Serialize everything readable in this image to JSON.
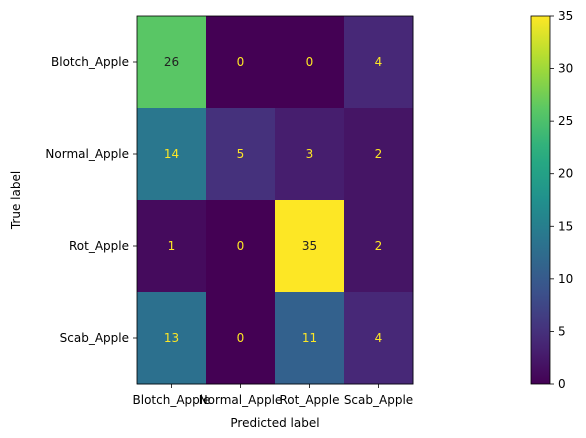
{
  "chart_data": {
    "type": "heatmap",
    "title": "",
    "xlabel": "Predicted label",
    "ylabel": "True label",
    "x_categories": [
      "Blotch_Apple",
      "Normal_Apple",
      "Rot_Apple",
      "Scab_Apple"
    ],
    "y_categories": [
      "Blotch_Apple",
      "Normal_Apple",
      "Rot_Apple",
      "Scab_Apple"
    ],
    "matrix": [
      [
        26,
        0,
        0,
        4
      ],
      [
        14,
        5,
        3,
        2
      ],
      [
        1,
        0,
        35,
        2
      ],
      [
        13,
        0,
        11,
        4
      ]
    ],
    "colormap": "viridis",
    "colorbar": {
      "range": [
        0,
        35
      ],
      "ticks": [
        0,
        5,
        10,
        15,
        20,
        25,
        30,
        35
      ]
    },
    "grid": false
  },
  "colors": {
    "label_light": "#fde725",
    "label_dark": "#222222"
  }
}
